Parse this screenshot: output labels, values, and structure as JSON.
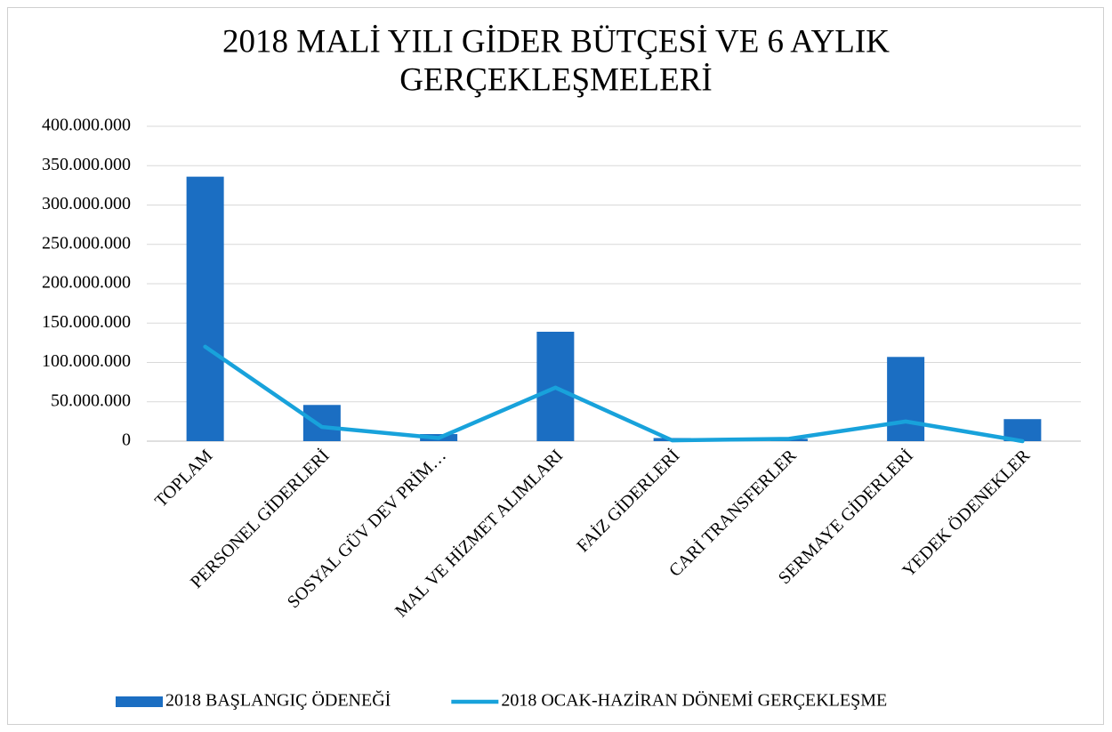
{
  "chart_data": {
    "type": "bar_line",
    "title": [
      "2018 MALİ YILI GİDER BÜTÇESİ VE 6 AYLIK",
      "GERÇEKLEŞMELERİ"
    ],
    "categories": [
      "TOPLAM",
      "PERSONEL GİDERLERİ",
      "SOSYAL GÜV DEV PRİM…",
      "MAL VE HİZMET ALIMLARI",
      "FAİZ GİDERLERİ",
      "CARİ TRANSFERLER",
      "SERMAYE GİDERLERİ",
      "YEDEK ÖDENEKLER"
    ],
    "series": [
      {
        "name": "2018 BAŞLANGIÇ ÖDENEĞİ",
        "type": "bar",
        "color": "#1b6ec2",
        "values": [
          336000000,
          46000000,
          9000000,
          139000000,
          4000000,
          3000000,
          107000000,
          28000000
        ]
      },
      {
        "name": "2018 OCAK-HAZİRAN DÖNEMİ GERÇEKLEŞME",
        "type": "line",
        "color": "#18a2db",
        "values": [
          120000000,
          18000000,
          4000000,
          68000000,
          1000000,
          3000000,
          25000000,
          0
        ]
      }
    ],
    "ylim": [
      0,
      400000000
    ],
    "yticks": [
      0,
      {
        "value": 50000000,
        "label": "50.000.000"
      },
      {
        "value": 100000000,
        "label": "100.000.000"
      },
      {
        "value": 150000000,
        "label": "150.000.000"
      },
      {
        "value": 200000000,
        "label": "200.000.000"
      },
      {
        "value": 250000000,
        "label": "250.000.000"
      },
      {
        "value": 300000000,
        "label": "300.000.000"
      },
      {
        "value": 350000000,
        "label": "350.000.000"
      },
      {
        "value": 400000000,
        "label": "400.000.000"
      }
    ],
    "grid": true,
    "legend": "bottom"
  }
}
